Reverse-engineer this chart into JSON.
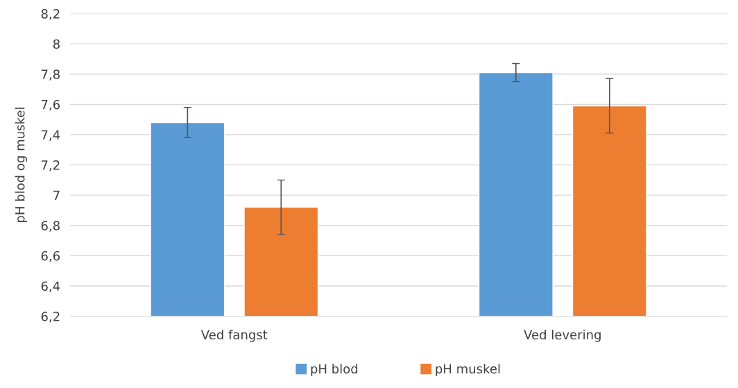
{
  "chart_data": {
    "type": "bar",
    "ylabel": "pH blod og muskel",
    "categories": [
      "Ved fangst",
      "Ved levering"
    ],
    "series": [
      {
        "name": "pH blod",
        "color": "#5b9bd5",
        "values": [
          7.48,
          7.81
        ],
        "errors": [
          0.1,
          0.06
        ]
      },
      {
        "name": "pH muskel",
        "color": "#ed7d31",
        "values": [
          6.92,
          7.59
        ],
        "errors": [
          0.18,
          0.18
        ]
      }
    ],
    "ylim": [
      6.2,
      8.2
    ],
    "yticks": [
      {
        "value": 6.2,
        "label": "6,2"
      },
      {
        "value": 6.4,
        "label": "6,4"
      },
      {
        "value": 6.6,
        "label": "6,6"
      },
      {
        "value": 6.8,
        "label": "6,8"
      },
      7,
      {
        "value": 7.2,
        "label": "7,2"
      },
      {
        "value": 7.4,
        "label": "7,4"
      },
      {
        "value": 7.6,
        "label": "7,6"
      },
      {
        "value": 7.8,
        "label": "7,8"
      },
      8,
      {
        "value": 8.2,
        "label": "8,2"
      }
    ],
    "grid": "y",
    "legend": "bottom"
  }
}
